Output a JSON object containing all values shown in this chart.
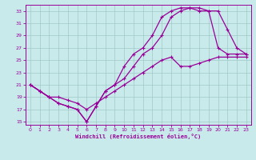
{
  "xlabel": "Windchill (Refroidissement éolien,°C)",
  "bg_color": "#c8eaea",
  "grid_color": "#a0c8c8",
  "line_color": "#990099",
  "xlim": [
    -0.5,
    23.5
  ],
  "ylim": [
    14.5,
    34.0
  ],
  "xticks": [
    0,
    1,
    2,
    3,
    4,
    5,
    6,
    7,
    8,
    9,
    10,
    11,
    12,
    13,
    14,
    15,
    16,
    17,
    18,
    19,
    20,
    21,
    22,
    23
  ],
  "yticks": [
    15,
    17,
    19,
    21,
    23,
    25,
    27,
    29,
    31,
    33
  ],
  "line1_x": [
    0,
    1,
    2,
    3,
    4,
    5,
    6,
    7,
    8,
    9,
    10,
    11,
    12,
    13,
    14,
    15,
    16,
    17,
    18,
    19,
    20,
    21,
    22,
    23
  ],
  "line1_y": [
    21,
    20,
    19,
    18,
    17.5,
    17,
    15,
    17.5,
    20,
    21,
    24,
    26,
    27,
    29,
    32,
    33,
    33.5,
    33.5,
    33,
    33,
    27,
    26,
    26,
    26
  ],
  "line2_x": [
    0,
    1,
    2,
    3,
    4,
    5,
    6,
    7,
    8,
    9,
    10,
    11,
    12,
    13,
    14,
    15,
    16,
    17,
    18,
    19,
    20,
    21,
    22,
    23
  ],
  "line2_y": [
    21,
    20,
    19,
    18,
    17.5,
    17,
    15,
    17.5,
    20,
    21,
    22,
    24,
    26,
    27,
    29,
    32,
    33,
    33.5,
    33.5,
    33,
    33,
    30,
    27,
    26
  ],
  "line3_x": [
    0,
    1,
    2,
    3,
    4,
    5,
    6,
    7,
    8,
    9,
    10,
    11,
    12,
    13,
    14,
    15,
    16,
    17,
    18,
    19,
    20,
    21,
    22,
    23
  ],
  "line3_y": [
    21,
    20,
    19,
    19,
    18.5,
    18,
    17,
    18,
    19,
    20,
    21,
    22,
    23,
    24,
    25,
    25.5,
    24,
    24,
    24.5,
    25,
    25.5,
    25.5,
    25.5,
    25.5
  ]
}
